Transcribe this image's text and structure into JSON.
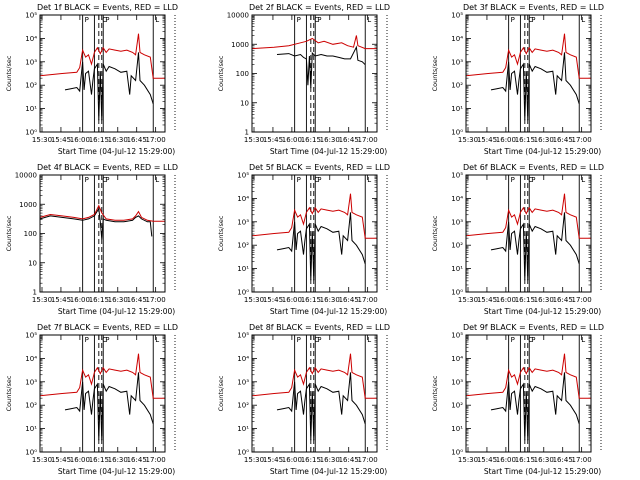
{
  "colors": {
    "events": "#000000",
    "lld": "#cc0000",
    "axis": "#000000"
  },
  "x_range_minutes": [
    15.0,
    100.0
  ],
  "xtick_labels": [
    "15:30",
    "15:45",
    "16:00",
    "16:15",
    "16:30",
    "16:45",
    "17:00"
  ],
  "xtick_minutes": [
    17,
    32,
    47,
    62,
    77,
    92,
    107
  ],
  "vlines_solid": [
    44,
    52,
    58,
    92
  ],
  "vlines_dashed": [
    55,
    57
  ],
  "vlines_dotted": [
    92
  ],
  "markers": [
    {
      "label": "P",
      "min": 44
    },
    {
      "label": "P",
      "min": 58
    },
    {
      "label": "C",
      "min": 56
    },
    {
      "label": "L",
      "min": 92
    }
  ],
  "xlabel": "Start Time (04-Jul-12 15:29:00)",
  "ylabel": "Counts/sec",
  "chart_data": [
    {
      "type": "line",
      "title": "Det 1f  BLACK = Events, RED = LLD",
      "ylim_exp": [
        0,
        5
      ],
      "ytick_labels": [
        "10⁰",
        "10¹",
        "10²",
        "10³",
        "10⁴",
        "10⁵"
      ],
      "profile": "A",
      "series": [
        {
          "name": "Events",
          "role": "events"
        },
        {
          "name": "LLD",
          "role": "lld"
        }
      ]
    },
    {
      "type": "line",
      "title": "Det 2f  BLACK = Events, RED = LLD",
      "ylim_exp": [
        0,
        4
      ],
      "ytick_labels": [
        "1",
        "10",
        "100",
        "1000",
        "10000"
      ],
      "profile": "B",
      "series": [
        {
          "name": "Events",
          "role": "events"
        },
        {
          "name": "LLD",
          "role": "lld"
        }
      ]
    },
    {
      "type": "line",
      "title": "Det 3f  BLACK = Events, RED = LLD",
      "ylim_exp": [
        0,
        5
      ],
      "ytick_labels": [
        "10⁰",
        "10¹",
        "10²",
        "10³",
        "10⁴",
        "10⁵"
      ],
      "profile": "A",
      "series": [
        {
          "name": "Events",
          "role": "events"
        },
        {
          "name": "LLD",
          "role": "lld"
        }
      ]
    },
    {
      "type": "line",
      "title": "Det 4f  BLACK = Events, RED = LLD",
      "ylim_exp": [
        0,
        4
      ],
      "ytick_labels": [
        "1",
        "10",
        "100",
        "1000",
        "10000"
      ],
      "profile": "C",
      "series": [
        {
          "name": "Events",
          "role": "events"
        },
        {
          "name": "LLD",
          "role": "lld"
        }
      ]
    },
    {
      "type": "line",
      "title": "Det 5f  BLACK = Events, RED = LLD",
      "ylim_exp": [
        0,
        5
      ],
      "ytick_labels": [
        "10⁰",
        "10¹",
        "10²",
        "10³",
        "10⁴",
        "10⁵"
      ],
      "profile": "A",
      "series": [
        {
          "name": "Events",
          "role": "events"
        },
        {
          "name": "LLD",
          "role": "lld"
        }
      ]
    },
    {
      "type": "line",
      "title": "Det 6f  BLACK = Events, RED = LLD",
      "ylim_exp": [
        0,
        5
      ],
      "ytick_labels": [
        "10⁰",
        "10¹",
        "10²",
        "10³",
        "10⁴",
        "10⁵"
      ],
      "profile": "A",
      "series": [
        {
          "name": "Events",
          "role": "events"
        },
        {
          "name": "LLD",
          "role": "lld"
        }
      ]
    },
    {
      "type": "line",
      "title": "Det 7f  BLACK = Events, RED = LLD",
      "ylim_exp": [
        0,
        5
      ],
      "ytick_labels": [
        "10⁰",
        "10¹",
        "10²",
        "10³",
        "10⁴",
        "10⁵"
      ],
      "profile": "A",
      "series": [
        {
          "name": "Events",
          "role": "events"
        },
        {
          "name": "LLD",
          "role": "lld"
        }
      ]
    },
    {
      "type": "line",
      "title": "Det 8f  BLACK = Events, RED = LLD",
      "ylim_exp": [
        0,
        5
      ],
      "ytick_labels": [
        "10⁰",
        "10¹",
        "10²",
        "10³",
        "10⁴",
        "10⁵"
      ],
      "profile": "A",
      "series": [
        {
          "name": "Events",
          "role": "events"
        },
        {
          "name": "LLD",
          "role": "lld"
        }
      ]
    },
    {
      "type": "line",
      "title": "Det 9f  BLACK = Events, RED = LLD",
      "ylim_exp": [
        0,
        5
      ],
      "ytick_labels": [
        "10⁰",
        "10¹",
        "10²",
        "10³",
        "10⁴",
        "10⁵"
      ],
      "profile": "A",
      "series": [
        {
          "name": "Events",
          "role": "events"
        },
        {
          "name": "LLD",
          "role": "lld"
        }
      ]
    }
  ],
  "profiles": {
    "A": {
      "lld": [
        [
          15,
          2.4
        ],
        [
          30,
          2.5
        ],
        [
          40,
          2.55
        ],
        [
          42,
          2.75
        ],
        [
          44,
          3.5
        ],
        [
          46,
          3.2
        ],
        [
          48,
          3.3
        ],
        [
          50,
          2.9
        ],
        [
          52,
          3.4
        ],
        [
          54,
          3.6
        ],
        [
          56,
          3.35
        ],
        [
          58,
          3.6
        ],
        [
          60,
          3.4
        ],
        [
          62,
          3.55
        ],
        [
          66,
          3.5
        ],
        [
          70,
          3.45
        ],
        [
          74,
          3.5
        ],
        [
          78,
          3.4
        ],
        [
          80,
          3.3
        ],
        [
          82,
          4.2
        ],
        [
          83,
          3.4
        ],
        [
          86,
          3.3
        ],
        [
          90,
          3.2
        ],
        [
          92,
          2.3
        ],
        [
          100,
          2.3
        ]
      ],
      "events": [
        [
          32,
          1.8
        ],
        [
          36,
          1.85
        ],
        [
          40,
          1.9
        ],
        [
          42,
          1.75
        ],
        [
          44,
          3.0
        ],
        [
          45,
          1.8
        ],
        [
          46,
          2.5
        ],
        [
          48,
          2.6
        ],
        [
          50,
          1.6
        ],
        [
          51,
          2.2
        ],
        [
          52,
          2.7
        ],
        [
          54,
          2.9
        ],
        [
          55,
          0.5
        ],
        [
          56,
          2.6
        ],
        [
          57,
          0.5
        ],
        [
          58,
          2.9
        ],
        [
          60,
          2.6
        ],
        [
          62,
          2.8
        ],
        [
          66,
          2.7
        ],
        [
          70,
          2.55
        ],
        [
          74,
          2.6
        ],
        [
          76,
          1.6
        ],
        [
          77,
          2.4
        ],
        [
          80,
          2.2
        ],
        [
          82,
          3.4
        ],
        [
          83,
          2.2
        ],
        [
          86,
          2.0
        ],
        [
          90,
          1.6
        ],
        [
          92,
          1.2
        ]
      ]
    },
    "B": {
      "lld": [
        [
          15,
          2.85
        ],
        [
          30,
          2.9
        ],
        [
          40,
          2.95
        ],
        [
          48,
          3.05
        ],
        [
          52,
          3.1
        ],
        [
          56,
          3.2
        ],
        [
          60,
          3.05
        ],
        [
          64,
          3.1
        ],
        [
          70,
          3.0
        ],
        [
          76,
          3.05
        ],
        [
          80,
          2.95
        ],
        [
          84,
          2.9
        ],
        [
          86,
          3.3
        ],
        [
          87,
          2.95
        ],
        [
          92,
          2.85
        ],
        [
          100,
          2.85
        ]
      ],
      "events": [
        [
          32,
          2.65
        ],
        [
          40,
          2.68
        ],
        [
          44,
          2.6
        ],
        [
          48,
          2.65
        ],
        [
          50,
          2.55
        ],
        [
          52,
          2.5
        ],
        [
          53,
          1.6
        ],
        [
          54,
          2.6
        ],
        [
          55,
          1.5
        ],
        [
          56,
          2.7
        ],
        [
          58,
          2.6
        ],
        [
          62,
          2.65
        ],
        [
          66,
          2.6
        ],
        [
          70,
          2.6
        ],
        [
          74,
          2.55
        ],
        [
          78,
          2.5
        ],
        [
          82,
          2.5
        ],
        [
          86,
          2.9
        ],
        [
          87,
          2.45
        ],
        [
          90,
          2.4
        ],
        [
          92,
          2.3
        ]
      ]
    },
    "C": {
      "lld": [
        [
          15,
          2.55
        ],
        [
          22,
          2.65
        ],
        [
          30,
          2.6
        ],
        [
          38,
          2.55
        ],
        [
          44,
          2.5
        ],
        [
          48,
          2.55
        ],
        [
          52,
          2.65
        ],
        [
          55,
          2.95
        ],
        [
          57,
          2.7
        ],
        [
          60,
          2.5
        ],
        [
          66,
          2.45
        ],
        [
          72,
          2.45
        ],
        [
          78,
          2.5
        ],
        [
          80,
          2.6
        ],
        [
          82,
          2.75
        ],
        [
          84,
          2.55
        ],
        [
          88,
          2.45
        ],
        [
          92,
          2.42
        ],
        [
          100,
          2.42
        ]
      ],
      "events": [
        [
          15,
          2.5
        ],
        [
          22,
          2.6
        ],
        [
          30,
          2.55
        ],
        [
          38,
          2.5
        ],
        [
          44,
          2.45
        ],
        [
          48,
          2.5
        ],
        [
          52,
          2.6
        ],
        [
          55,
          2.85
        ],
        [
          56,
          2.4
        ],
        [
          57,
          1.8
        ],
        [
          58,
          2.5
        ],
        [
          60,
          2.45
        ],
        [
          66,
          2.4
        ],
        [
          72,
          2.4
        ],
        [
          78,
          2.45
        ],
        [
          80,
          2.55
        ],
        [
          82,
          2.6
        ],
        [
          84,
          2.5
        ],
        [
          88,
          2.4
        ],
        [
          90,
          2.4
        ],
        [
          91,
          1.9
        ]
      ]
    }
  }
}
